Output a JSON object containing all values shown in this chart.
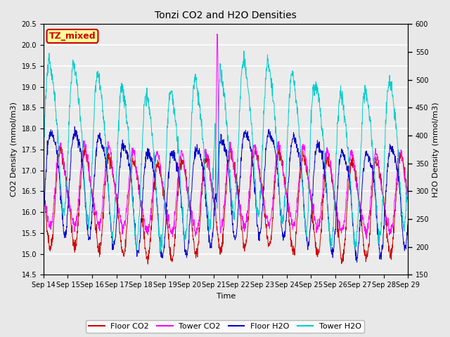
{
  "title": "Tonzi CO2 and H2O Densities",
  "xlabel": "Time",
  "ylabel_left": "CO2 Density (mmol/m3)",
  "ylabel_right": "H2O Density (mmol/m3)",
  "ylim_left": [
    14.5,
    20.5
  ],
  "ylim_right": [
    150,
    600
  ],
  "yticks_left": [
    14.5,
    15.0,
    15.5,
    16.0,
    16.5,
    17.0,
    17.5,
    18.0,
    18.5,
    19.0,
    19.5,
    20.0,
    20.5
  ],
  "yticks_right": [
    150,
    200,
    250,
    300,
    350,
    400,
    450,
    500,
    550,
    600
  ],
  "annotation_text": "TZ_mixed",
  "annotation_color": "#cc0000",
  "annotation_bg": "#ffff99",
  "annotation_border": "#cc0000",
  "n_points": 1440,
  "colors": {
    "floor_co2": "#cc0000",
    "tower_co2": "#ff00ff",
    "floor_h2o": "#0000cc",
    "tower_h2o": "#00cccc"
  },
  "legend_labels": [
    "Floor CO2",
    "Tower CO2",
    "Floor H2O",
    "Tower H2O"
  ],
  "xtick_labels": [
    "Sep 14",
    "Sep 15",
    "Sep 16",
    "Sep 17",
    "Sep 18",
    "Sep 19",
    "Sep 20",
    "Sep 21",
    "Sep 22",
    "Sep 23",
    "Sep 24",
    "Sep 25",
    "Sep 26",
    "Sep 27",
    "Sep 28",
    "Sep 29"
  ],
  "bg_color": "#e8e8e8",
  "plot_bg": "#ebebeb",
  "grid_color": "white"
}
